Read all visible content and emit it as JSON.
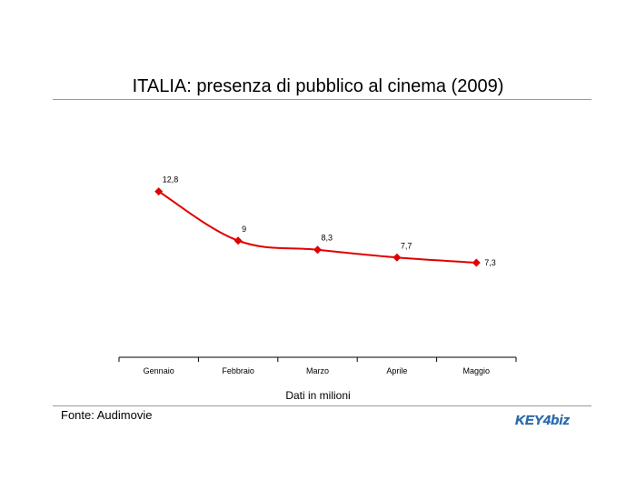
{
  "chart_data": {
    "type": "line",
    "title": "ITALIA: presenza di pubblico al cinema (2009)",
    "xlabel": "Dati in milioni",
    "ylabel": "",
    "categories": [
      "Gennaio",
      "Febbraio",
      "Marzo",
      "Aprile",
      "Maggio"
    ],
    "series": [
      {
        "values": [
          12.8,
          9,
          8.3,
          7.7,
          7.3
        ]
      }
    ],
    "data_labels": [
      "12,8",
      "9",
      "8,3",
      "7,7",
      "7,3"
    ],
    "ylim": [
      0,
      20
    ],
    "line_color": "#e00000",
    "marker": "diamond",
    "grid": false,
    "legend": "none"
  },
  "source": "Fonte: Audimovie",
  "logo": {
    "text": "KEY4biz",
    "color": "#2a6fb5"
  }
}
